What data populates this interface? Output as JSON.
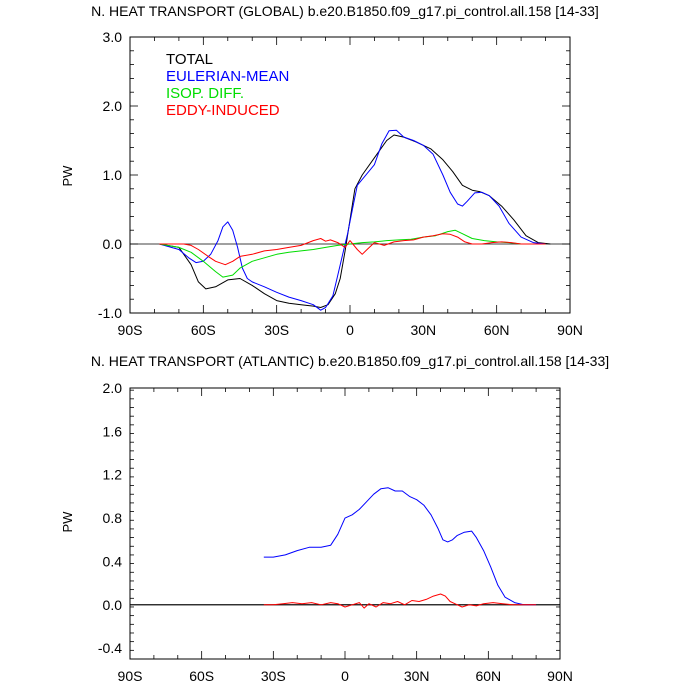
{
  "chart_data": [
    {
      "type": "line",
      "title": "N. HEAT TRANSPORT (GLOBAL) b.e20.B1850.f09_g17.pi_control.all.158 [14-33]",
      "xlabel": "",
      "ylabel": "PW",
      "xlim": [
        -90,
        90
      ],
      "ylim": [
        -1.0,
        3.0
      ],
      "x_ticks": [
        -90,
        -60,
        -30,
        0,
        30,
        60,
        90
      ],
      "x_tick_labels": [
        "90S",
        "60S",
        "30S",
        "0",
        "30N",
        "60N",
        "90N"
      ],
      "y_ticks": [
        -1.0,
        0.0,
        1.0,
        2.0,
        3.0
      ],
      "y_tick_labels": [
        "-1.0",
        "0.0",
        "1.0",
        "2.0",
        "3.0"
      ],
      "grid": false,
      "legend_position": "top-left",
      "series": [
        {
          "name": "TOTAL",
          "color": "#000000",
          "points": [
            [
              -78,
              0.0
            ],
            [
              -70,
              -0.05
            ],
            [
              -65,
              -0.3
            ],
            [
              -62,
              -0.55
            ],
            [
              -59,
              -0.65
            ],
            [
              -55,
              -0.62
            ],
            [
              -50,
              -0.52
            ],
            [
              -45,
              -0.5
            ],
            [
              -40,
              -0.6
            ],
            [
              -35,
              -0.72
            ],
            [
              -30,
              -0.82
            ],
            [
              -25,
              -0.86
            ],
            [
              -20,
              -0.88
            ],
            [
              -15,
              -0.9
            ],
            [
              -12,
              -0.92
            ],
            [
              -9,
              -0.88
            ],
            [
              -6,
              -0.72
            ],
            [
              -4,
              -0.5
            ],
            [
              -2,
              -0.1
            ],
            [
              0,
              0.35
            ],
            [
              2,
              0.8
            ],
            [
              5,
              1.0
            ],
            [
              10,
              1.25
            ],
            [
              15,
              1.5
            ],
            [
              18,
              1.58
            ],
            [
              22,
              1.55
            ],
            [
              27,
              1.48
            ],
            [
              33,
              1.38
            ],
            [
              38,
              1.22
            ],
            [
              42,
              1.05
            ],
            [
              46,
              0.85
            ],
            [
              50,
              0.78
            ],
            [
              53,
              0.76
            ],
            [
              57,
              0.7
            ],
            [
              62,
              0.55
            ],
            [
              67,
              0.35
            ],
            [
              72,
              0.12
            ],
            [
              77,
              0.02
            ],
            [
              82,
              0.0
            ]
          ]
        },
        {
          "name": "EULERIAN-MEAN",
          "color": "#0000ff",
          "points": [
            [
              -78,
              0.0
            ],
            [
              -70,
              -0.08
            ],
            [
              -66,
              -0.2
            ],
            [
              -63,
              -0.27
            ],
            [
              -60,
              -0.25
            ],
            [
              -57,
              -0.15
            ],
            [
              -54,
              0.05
            ],
            [
              -52,
              0.25
            ],
            [
              -50,
              0.32
            ],
            [
              -48,
              0.2
            ],
            [
              -46,
              -0.05
            ],
            [
              -44,
              -0.35
            ],
            [
              -42,
              -0.5
            ],
            [
              -40,
              -0.55
            ],
            [
              -35,
              -0.62
            ],
            [
              -30,
              -0.7
            ],
            [
              -25,
              -0.77
            ],
            [
              -20,
              -0.82
            ],
            [
              -15,
              -0.88
            ],
            [
              -12,
              -0.96
            ],
            [
              -10,
              -0.92
            ],
            [
              -7,
              -0.75
            ],
            [
              -5,
              -0.45
            ],
            [
              -3,
              -0.15
            ],
            [
              -1,
              0.15
            ],
            [
              1,
              0.5
            ],
            [
              3,
              0.85
            ],
            [
              6,
              0.98
            ],
            [
              10,
              1.15
            ],
            [
              13,
              1.45
            ],
            [
              16,
              1.64
            ],
            [
              19,
              1.65
            ],
            [
              22,
              1.55
            ],
            [
              26,
              1.5
            ],
            [
              30,
              1.43
            ],
            [
              34,
              1.3
            ],
            [
              38,
              1.0
            ],
            [
              41,
              0.75
            ],
            [
              44,
              0.58
            ],
            [
              46,
              0.55
            ],
            [
              48,
              0.62
            ],
            [
              51,
              0.74
            ],
            [
              54,
              0.75
            ],
            [
              57,
              0.7
            ],
            [
              61,
              0.55
            ],
            [
              65,
              0.3
            ],
            [
              70,
              0.1
            ],
            [
              75,
              0.02
            ],
            [
              80,
              0.0
            ]
          ]
        },
        {
          "name": "ISOP. DIFF.",
          "color": "#00dd00",
          "points": [
            [
              -78,
              0.0
            ],
            [
              -70,
              -0.05
            ],
            [
              -65,
              -0.12
            ],
            [
              -60,
              -0.25
            ],
            [
              -55,
              -0.4
            ],
            [
              -52,
              -0.48
            ],
            [
              -48,
              -0.45
            ],
            [
              -45,
              -0.35
            ],
            [
              -40,
              -0.25
            ],
            [
              -35,
              -0.2
            ],
            [
              -30,
              -0.15
            ],
            [
              -25,
              -0.12
            ],
            [
              -20,
              -0.1
            ],
            [
              -15,
              -0.08
            ],
            [
              -10,
              -0.05
            ],
            [
              -5,
              -0.02
            ],
            [
              0,
              0.0
            ],
            [
              5,
              0.02
            ],
            [
              10,
              0.03
            ],
            [
              15,
              0.05
            ],
            [
              20,
              0.06
            ],
            [
              25,
              0.07
            ],
            [
              30,
              0.1
            ],
            [
              35,
              0.12
            ],
            [
              40,
              0.18
            ],
            [
              43,
              0.2
            ],
            [
              46,
              0.15
            ],
            [
              50,
              0.08
            ],
            [
              55,
              0.05
            ],
            [
              60,
              0.03
            ],
            [
              65,
              0.02
            ],
            [
              70,
              0.0
            ],
            [
              80,
              0.0
            ]
          ]
        },
        {
          "name": "EDDY-INDUCED",
          "color": "#ff0000",
          "points": [
            [
              -78,
              0.0
            ],
            [
              -68,
              0.0
            ],
            [
              -65,
              -0.02
            ],
            [
              -62,
              -0.08
            ],
            [
              -58,
              -0.18
            ],
            [
              -55,
              -0.25
            ],
            [
              -51,
              -0.3
            ],
            [
              -48,
              -0.25
            ],
            [
              -45,
              -0.18
            ],
            [
              -40,
              -0.15
            ],
            [
              -35,
              -0.1
            ],
            [
              -30,
              -0.08
            ],
            [
              -25,
              -0.05
            ],
            [
              -20,
              -0.02
            ],
            [
              -15,
              0.05
            ],
            [
              -12,
              0.08
            ],
            [
              -10,
              0.04
            ],
            [
              -8,
              0.06
            ],
            [
              -5,
              0.02
            ],
            [
              -2,
              -0.05
            ],
            [
              0,
              0.05
            ],
            [
              3,
              -0.08
            ],
            [
              5,
              -0.15
            ],
            [
              7,
              -0.08
            ],
            [
              10,
              0.02
            ],
            [
              14,
              -0.02
            ],
            [
              18,
              0.03
            ],
            [
              22,
              0.05
            ],
            [
              26,
              0.06
            ],
            [
              30,
              0.1
            ],
            [
              34,
              0.12
            ],
            [
              38,
              0.15
            ],
            [
              41,
              0.14
            ],
            [
              44,
              0.1
            ],
            [
              47,
              0.03
            ],
            [
              50,
              0.0
            ],
            [
              54,
              0.0
            ],
            [
              58,
              0.02
            ],
            [
              62,
              0.03
            ],
            [
              66,
              0.02
            ],
            [
              70,
              0.0
            ],
            [
              80,
              0.0
            ]
          ]
        }
      ]
    },
    {
      "type": "line",
      "title": "N. HEAT TRANSPORT (ATLANTIC) b.e20.B1850.f09_g17.pi_control.all.158 [14-33]",
      "xlabel": "",
      "ylabel": "PW",
      "xlim": [
        -90,
        90
      ],
      "ylim": [
        -0.5,
        2.0
      ],
      "x_ticks": [
        -90,
        -60,
        -30,
        0,
        30,
        60,
        90
      ],
      "x_tick_labels": [
        "90S",
        "60S",
        "30S",
        "0",
        "30N",
        "60N",
        "90N"
      ],
      "y_ticks": [
        -0.4,
        0.0,
        0.4,
        0.8,
        1.2,
        1.6,
        2.0
      ],
      "y_tick_labels": [
        "-0.4",
        "0.0",
        "0.4",
        "0.8",
        "1.2",
        "1.6",
        "2.0"
      ],
      "grid": false,
      "series": [
        {
          "name": "",
          "color": "#000000",
          "points": [
            [
              -90,
              0.0
            ],
            [
              90,
              0.0
            ]
          ]
        },
        {
          "name": "",
          "color": "#0000ff",
          "points": [
            [
              -34,
              0.44
            ],
            [
              -30,
              0.44
            ],
            [
              -25,
              0.46
            ],
            [
              -20,
              0.5
            ],
            [
              -15,
              0.53
            ],
            [
              -10,
              0.53
            ],
            [
              -6,
              0.55
            ],
            [
              -3,
              0.65
            ],
            [
              0,
              0.8
            ],
            [
              3,
              0.83
            ],
            [
              6,
              0.88
            ],
            [
              9,
              0.95
            ],
            [
              12,
              1.02
            ],
            [
              15,
              1.07
            ],
            [
              18,
              1.08
            ],
            [
              21,
              1.05
            ],
            [
              24,
              1.05
            ],
            [
              27,
              1.0
            ],
            [
              30,
              0.97
            ],
            [
              33,
              0.92
            ],
            [
              36,
              0.83
            ],
            [
              39,
              0.7
            ],
            [
              41,
              0.6
            ],
            [
              43,
              0.58
            ],
            [
              45,
              0.6
            ],
            [
              47,
              0.64
            ],
            [
              50,
              0.67
            ],
            [
              53,
              0.68
            ],
            [
              55,
              0.62
            ],
            [
              58,
              0.5
            ],
            [
              61,
              0.35
            ],
            [
              64,
              0.18
            ],
            [
              67,
              0.07
            ],
            [
              71,
              0.02
            ],
            [
              75,
              0.0
            ],
            [
              80,
              0.0
            ]
          ]
        },
        {
          "name": "",
          "color": "#ff0000",
          "points": [
            [
              -34,
              0.0
            ],
            [
              -30,
              0.0
            ],
            [
              -26,
              0.01
            ],
            [
              -22,
              0.02
            ],
            [
              -18,
              0.01
            ],
            [
              -14,
              0.02
            ],
            [
              -10,
              0.0
            ],
            [
              -6,
              0.02
            ],
            [
              -3,
              0.01
            ],
            [
              0,
              -0.02
            ],
            [
              3,
              0.0
            ],
            [
              6,
              0.02
            ],
            [
              8,
              -0.03
            ],
            [
              10,
              0.01
            ],
            [
              13,
              -0.02
            ],
            [
              16,
              0.02
            ],
            [
              19,
              0.01
            ],
            [
              22,
              0.03
            ],
            [
              25,
              0.0
            ],
            [
              28,
              0.04
            ],
            [
              31,
              0.03
            ],
            [
              34,
              0.05
            ],
            [
              37,
              0.08
            ],
            [
              40,
              0.1
            ],
            [
              42,
              0.08
            ],
            [
              44,
              0.03
            ],
            [
              46,
              0.01
            ],
            [
              49,
              -0.02
            ],
            [
              52,
              0.0
            ],
            [
              55,
              -0.01
            ],
            [
              58,
              0.01
            ],
            [
              62,
              0.02
            ],
            [
              66,
              0.01
            ],
            [
              70,
              0.0
            ],
            [
              80,
              0.0
            ]
          ]
        }
      ]
    }
  ]
}
